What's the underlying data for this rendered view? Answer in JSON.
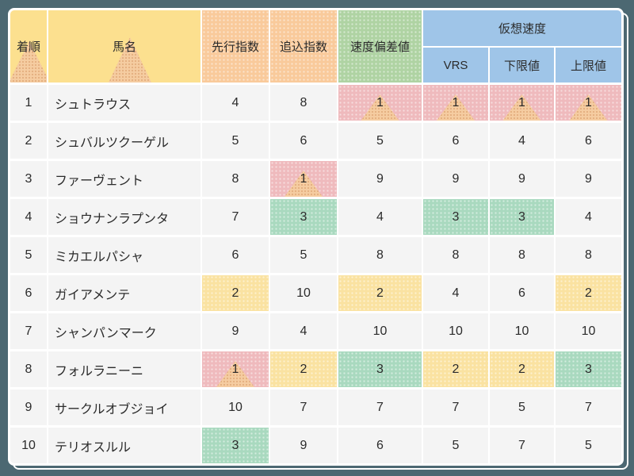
{
  "chart_data": {
    "type": "table",
    "header": {
      "rank": "着順",
      "name": "馬名",
      "lead": "先行指数",
      "close": "追込指数",
      "dev": "速度偏差値",
      "virtual_group": "仮想速度",
      "vrs": "VRS",
      "lower": "下限値",
      "upper": "上限値"
    },
    "rows": [
      {
        "rank": "1",
        "name": "シュトラウス",
        "lead": "4",
        "close": "8",
        "dev": "1",
        "vrs": "1",
        "lower": "1",
        "upper": "1"
      },
      {
        "rank": "2",
        "name": "シュバルツクーゲル",
        "lead": "5",
        "close": "6",
        "dev": "5",
        "vrs": "6",
        "lower": "4",
        "upper": "6"
      },
      {
        "rank": "3",
        "name": "ファーヴェント",
        "lead": "8",
        "close": "1",
        "dev": "9",
        "vrs": "9",
        "lower": "9",
        "upper": "9"
      },
      {
        "rank": "4",
        "name": "ショウナンラプンタ",
        "lead": "7",
        "close": "3",
        "dev": "4",
        "vrs": "3",
        "lower": "3",
        "upper": "4"
      },
      {
        "rank": "5",
        "name": "ミカエルパシャ",
        "lead": "6",
        "close": "5",
        "dev": "8",
        "vrs": "8",
        "lower": "8",
        "upper": "8"
      },
      {
        "rank": "6",
        "name": "ガイアメンテ",
        "lead": "2",
        "close": "10",
        "dev": "2",
        "vrs": "4",
        "lower": "6",
        "upper": "2"
      },
      {
        "rank": "7",
        "name": "シャンパンマーク",
        "lead": "9",
        "close": "4",
        "dev": "10",
        "vrs": "10",
        "lower": "10",
        "upper": "10"
      },
      {
        "rank": "8",
        "name": "フォルラニーニ",
        "lead": "1",
        "close": "2",
        "dev": "3",
        "vrs": "2",
        "lower": "2",
        "upper": "3"
      },
      {
        "rank": "9",
        "name": "サークルオブジョイ",
        "lead": "10",
        "close": "7",
        "dev": "7",
        "vrs": "7",
        "lower": "5",
        "upper": "7"
      },
      {
        "rank": "10",
        "name": "テリオスルル",
        "lead": "3",
        "close": "9",
        "dev": "6",
        "vrs": "5",
        "lower": "7",
        "upper": "5"
      }
    ],
    "highlight_rule": {
      "1": "pink",
      "2": "yellow",
      "3": "green"
    }
  },
  "colors": {
    "page_bg": "#4C6872",
    "row_bg": "#F4F4F4",
    "text": "#2B2B2B",
    "header_yellow": "#FCE08F",
    "header_orange": "#F9CA9B",
    "header_green": "#AFD3A3",
    "header_blue": "#9FC5E8",
    "highlight_pink": "#EFBABD",
    "highlight_yellow": "#FAE2A1",
    "highlight_green": "#A9D9BF",
    "triangle_peach": "#F5CCA1",
    "card_border": "#FFFFFF"
  }
}
